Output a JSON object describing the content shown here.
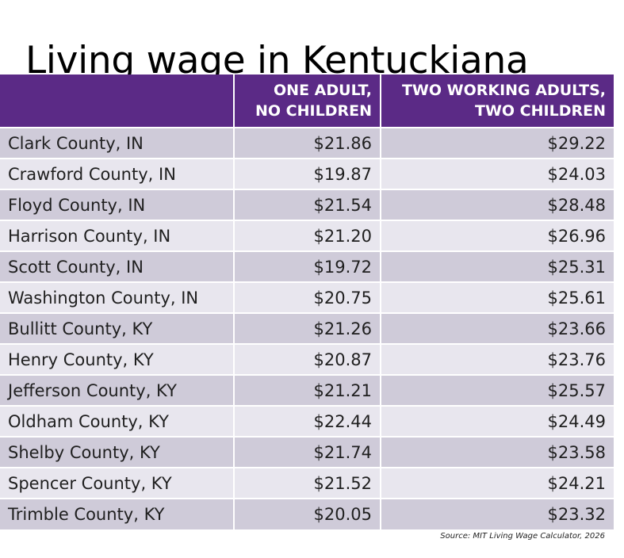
{
  "title": "Living wage in Kentuckiana",
  "colors": {
    "header_bg": "#5b2a86",
    "row_odd": "#cfcbd9",
    "row_even": "#e8e6ee"
  },
  "chart_data": {
    "type": "table",
    "columns": [
      {
        "lines": [
          "",
          ""
        ]
      },
      {
        "lines": [
          "ONE ADULT,",
          "NO CHILDREN"
        ]
      },
      {
        "lines": [
          "TWO WORKING ADULTS,",
          "TWO CHILDREN"
        ]
      }
    ],
    "rows": [
      {
        "county": "Clark County, IN",
        "one_adult": "$21.86",
        "two_adults": "$29.22"
      },
      {
        "county": "Crawford County, IN",
        "one_adult": "$19.87",
        "two_adults": "$24.03"
      },
      {
        "county": "Floyd County, IN",
        "one_adult": "$21.54",
        "two_adults": "$28.48"
      },
      {
        "county": "Harrison County, IN",
        "one_adult": "$21.20",
        "two_adults": "$26.96"
      },
      {
        "county": "Scott County, IN",
        "one_adult": "$19.72",
        "two_adults": "$25.31"
      },
      {
        "county": "Washington County, IN",
        "one_adult": "$20.75",
        "two_adults": "$25.61"
      },
      {
        "county": "Bullitt County, KY",
        "one_adult": "$21.26",
        "two_adults": "$23.66"
      },
      {
        "county": "Henry County, KY",
        "one_adult": "$20.87",
        "two_adults": "$23.76"
      },
      {
        "county": "Jefferson County, KY",
        "one_adult": "$21.21",
        "two_adults": "$25.57"
      },
      {
        "county": "Oldham County, KY",
        "one_adult": "$22.44",
        "two_adults": "$24.49"
      },
      {
        "county": "Shelby County, KY",
        "one_adult": "$21.74",
        "two_adults": "$23.58"
      },
      {
        "county": "Spencer County, KY",
        "one_adult": "$21.52",
        "two_adults": "$24.21"
      },
      {
        "county": "Trimble County, KY",
        "one_adult": "$20.05",
        "two_adults": "$23.32"
      }
    ]
  },
  "source": "Source: MIT Living Wage Calculator, 2026"
}
